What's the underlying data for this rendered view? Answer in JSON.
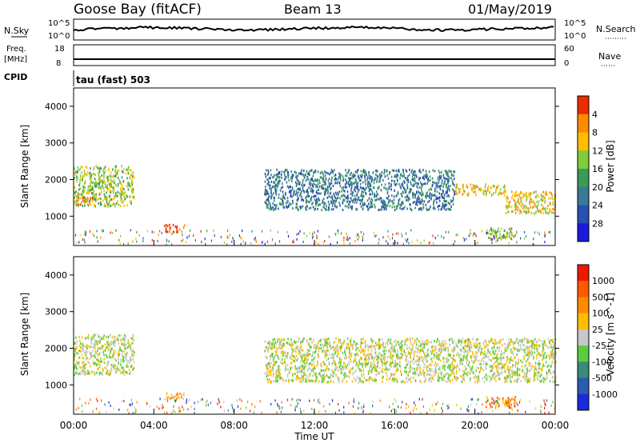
{
  "header": {
    "station": "Goose Bay (fitACF)",
    "beam": "Beam 13",
    "date": "01/May/2019"
  },
  "labels": {
    "nsky": "N.Sky",
    "nsearch": "N.Search",
    "freq_line1": "Freq.",
    "freq_line2": "[MHz]",
    "cpid": "CPID",
    "nave": "Nave",
    "cpid_value": "tau (fast) 503",
    "nsky_tick_hi": "10^5",
    "nsky_tick_lo": "10^0",
    "nsearch_tick_hi": "10^5",
    "nsearch_tick_lo": "10^0",
    "freq_tick_hi": "18",
    "freq_tick_lo": "8",
    "nave_tick_hi": "60",
    "nave_tick_lo": "0"
  },
  "chart_data": [
    {
      "type": "heatmap",
      "name": "power",
      "ylabel": "Slant Range [km]",
      "yticks": [
        1000,
        2000,
        3000,
        4000
      ],
      "ylim": [
        200,
        4500
      ],
      "xlim": [
        0,
        24
      ],
      "colorbar": {
        "label": "Power [dB]",
        "ticks": [
          "4",
          "8",
          "12",
          "16",
          "20",
          "24",
          "28"
        ],
        "colors": [
          "#1a1adc",
          "#2a4fb0",
          "#3a7a96",
          "#3b9a5a",
          "#7ccd3c",
          "#ffbe00",
          "#ff8a00",
          "#ee2a00"
        ]
      },
      "bands": [
        {
          "t0": 0.0,
          "t1": 3.0,
          "r0": 1300,
          "r1": 2400,
          "level": 4
        },
        {
          "t0": 0.0,
          "t1": 1.0,
          "r0": 1350,
          "r1": 1550,
          "level": 6
        },
        {
          "t0": 4.5,
          "t1": 5.5,
          "r0": 600,
          "r1": 800,
          "level": 7
        },
        {
          "t0": 9.5,
          "t1": 19.0,
          "r0": 1200,
          "r1": 2300,
          "level": 2
        },
        {
          "t0": 19.0,
          "t1": 21.5,
          "r0": 1600,
          "r1": 1900,
          "level": 5
        },
        {
          "t0": 21.5,
          "t1": 24.0,
          "r0": 1100,
          "r1": 1700,
          "level": 5
        },
        {
          "t0": 20.5,
          "t1": 22.0,
          "r0": 400,
          "r1": 700,
          "level": 4
        }
      ]
    },
    {
      "type": "heatmap",
      "name": "velocity",
      "ylabel": "Slant Range [km]",
      "xlabel": "Time UT",
      "xticks": [
        "00:00",
        "04:00",
        "08:00",
        "12:00",
        "16:00",
        "20:00",
        "00:00"
      ],
      "yticks": [
        1000,
        2000,
        3000,
        4000
      ],
      "ylim": [
        200,
        4500
      ],
      "xlim": [
        0,
        24
      ],
      "colorbar": {
        "label": "Velocity [m s^-1]",
        "ticks": [
          "1000",
          "500",
          "100",
          "25",
          "-25",
          "-100",
          "-500",
          "-1000"
        ],
        "colors": [
          "#1a2adc",
          "#2a5cb0",
          "#3b8a7a",
          "#5acd3c",
          "#c8c8c8",
          "#ffbe00",
          "#ff8a00",
          "#ff5a00",
          "#ee1a00"
        ]
      },
      "bands": [
        {
          "t0": 0.0,
          "t1": 3.0,
          "r0": 1300,
          "r1": 2400,
          "level": 4
        },
        {
          "t0": 4.5,
          "t1": 5.5,
          "r0": 600,
          "r1": 800,
          "level": 5
        },
        {
          "t0": 9.5,
          "t1": 24.0,
          "r0": 1100,
          "r1": 2300,
          "level": 4
        },
        {
          "t0": 20.5,
          "t1": 22.0,
          "r0": 400,
          "r1": 700,
          "level": 6
        }
      ]
    }
  ]
}
